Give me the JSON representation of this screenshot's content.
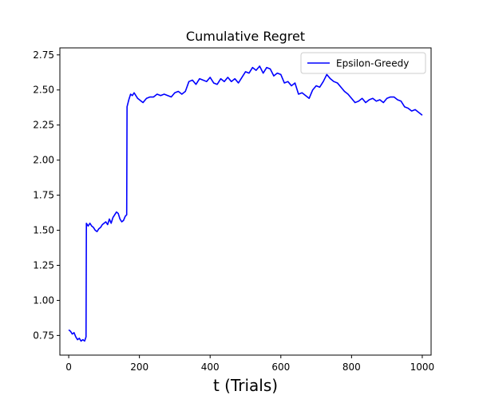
{
  "chart_data": {
    "type": "line",
    "title": "Cumulative Regret",
    "xlabel": "t (Trials)",
    "ylabel": "",
    "xlim": [
      -25,
      1025
    ],
    "ylim": [
      0.61,
      2.8
    ],
    "xticks": [
      0,
      200,
      400,
      600,
      800,
      1000
    ],
    "xtick_labels": [
      "0",
      "200",
      "400",
      "600",
      "800",
      "1000"
    ],
    "yticks": [
      0.75,
      1.0,
      1.25,
      1.5,
      1.75,
      2.0,
      2.25,
      2.5,
      2.75
    ],
    "ytick_labels": [
      "0.75",
      "1.00",
      "1.25",
      "1.50",
      "1.75",
      "2.00",
      "2.25",
      "2.50",
      "2.75"
    ],
    "grid": false,
    "legend_position": "top-right",
    "series": [
      {
        "name": "Epsilon-Greedy",
        "color": "#0000ff",
        "x": [
          0,
          5,
          10,
          15,
          20,
          25,
          30,
          35,
          40,
          45,
          49,
          50,
          55,
          60,
          65,
          70,
          75,
          80,
          85,
          90,
          95,
          100,
          105,
          110,
          115,
          120,
          125,
          130,
          135,
          140,
          145,
          150,
          155,
          160,
          164,
          165,
          170,
          175,
          180,
          185,
          190,
          195,
          200,
          210,
          220,
          230,
          240,
          250,
          260,
          270,
          280,
          290,
          300,
          310,
          320,
          330,
          340,
          350,
          360,
          370,
          380,
          390,
          400,
          410,
          420,
          430,
          440,
          450,
          460,
          470,
          480,
          490,
          500,
          510,
          520,
          530,
          540,
          550,
          560,
          570,
          580,
          590,
          600,
          610,
          620,
          630,
          640,
          650,
          660,
          670,
          680,
          690,
          700,
          710,
          720,
          730,
          740,
          750,
          760,
          770,
          780,
          790,
          800,
          810,
          820,
          830,
          840,
          850,
          860,
          870,
          880,
          890,
          900,
          910,
          920,
          930,
          940,
          950,
          960,
          970,
          980,
          990,
          1000
        ],
        "values": [
          0.79,
          0.78,
          0.76,
          0.77,
          0.74,
          0.72,
          0.73,
          0.71,
          0.72,
          0.71,
          0.74,
          1.55,
          1.53,
          1.55,
          1.53,
          1.52,
          1.5,
          1.49,
          1.51,
          1.52,
          1.54,
          1.55,
          1.56,
          1.54,
          1.58,
          1.55,
          1.59,
          1.61,
          1.63,
          1.62,
          1.58,
          1.56,
          1.57,
          1.6,
          1.61,
          2.38,
          2.43,
          2.47,
          2.46,
          2.48,
          2.46,
          2.44,
          2.43,
          2.41,
          2.44,
          2.45,
          2.45,
          2.47,
          2.46,
          2.47,
          2.46,
          2.45,
          2.48,
          2.49,
          2.47,
          2.49,
          2.56,
          2.57,
          2.54,
          2.58,
          2.57,
          2.56,
          2.59,
          2.55,
          2.54,
          2.58,
          2.56,
          2.59,
          2.56,
          2.58,
          2.55,
          2.59,
          2.63,
          2.62,
          2.66,
          2.64,
          2.67,
          2.62,
          2.66,
          2.65,
          2.6,
          2.62,
          2.61,
          2.55,
          2.56,
          2.53,
          2.55,
          2.47,
          2.48,
          2.46,
          2.44,
          2.5,
          2.53,
          2.52,
          2.56,
          2.61,
          2.58,
          2.56,
          2.55,
          2.52,
          2.49,
          2.47,
          2.44,
          2.41,
          2.42,
          2.44,
          2.41,
          2.43,
          2.44,
          2.42,
          2.43,
          2.41,
          2.44,
          2.45,
          2.45,
          2.43,
          2.42,
          2.38,
          2.37,
          2.35,
          2.36,
          2.34,
          2.32
        ]
      }
    ]
  }
}
